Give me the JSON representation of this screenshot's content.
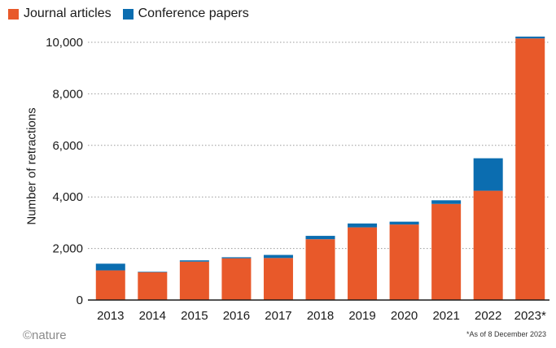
{
  "chart_data": {
    "type": "bar",
    "stacked": true,
    "categories": [
      "2013",
      "2014",
      "2015",
      "2016",
      "2017",
      "2018",
      "2019",
      "2020",
      "2021",
      "2022",
      "2023*"
    ],
    "series": [
      {
        "name": "Journal articles",
        "color": "#e8592a",
        "values": [
          1150,
          1080,
          1490,
          1620,
          1630,
          2360,
          2820,
          2930,
          3730,
          4240,
          10150
        ]
      },
      {
        "name": "Conference papers",
        "color": "#0b6db0",
        "values": [
          260,
          20,
          50,
          40,
          120,
          130,
          150,
          110,
          140,
          1260,
          70
        ]
      }
    ],
    "ylabel": "Number of retractions",
    "ylim": [
      0,
      10500
    ],
    "yticks": [
      "0",
      "2,000",
      "4,000",
      "6,000",
      "8,000",
      "10,000"
    ],
    "ytick_values": [
      0,
      2000,
      4000,
      6000,
      8000,
      10000
    ],
    "grid": true,
    "legend": "top-left"
  },
  "legend": {
    "journal": "Journal articles",
    "conference": "Conference papers",
    "journal_color": "#e8592a",
    "conference_color": "#0b6db0"
  },
  "credit": "©nature",
  "footnote": "*As of 8 December 2023"
}
